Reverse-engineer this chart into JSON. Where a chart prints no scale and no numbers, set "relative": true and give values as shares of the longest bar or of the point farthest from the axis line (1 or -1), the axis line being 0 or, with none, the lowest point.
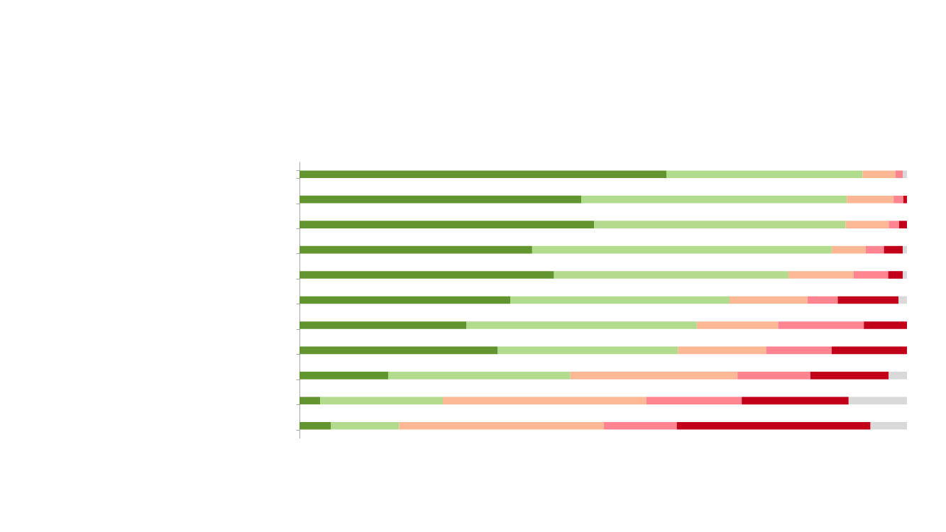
{
  "chart_data": {
    "type": "bar",
    "orientation": "horizontal",
    "stacked": true,
    "relative": true,
    "categories": [
      null,
      null,
      null,
      null,
      null,
      null,
      null,
      null,
      null,
      null,
      null
    ],
    "series": [
      {
        "color": "#62952f",
        "values": [
          0.604,
          0.464,
          0.485,
          0.383,
          0.419,
          0.347,
          0.275,
          0.326,
          0.146,
          0.034,
          0.052
        ]
      },
      {
        "color": "#b3db8e",
        "values": [
          0.323,
          0.437,
          0.414,
          0.493,
          0.386,
          0.361,
          0.379,
          0.297,
          0.3,
          0.202,
          0.112
        ]
      },
      {
        "color": "#fcb794",
        "values": [
          0.054,
          0.077,
          0.071,
          0.056,
          0.107,
          0.128,
          0.134,
          0.145,
          0.275,
          0.335,
          0.337
        ]
      },
      {
        "color": "#ff8490",
        "values": [
          0.012,
          0.016,
          0.017,
          0.03,
          0.057,
          0.05,
          0.141,
          0.108,
          0.12,
          0.157,
          0.12
        ]
      },
      {
        "color": "#c3001a",
        "values": [
          null,
          0.006,
          0.013,
          0.031,
          0.024,
          0.1,
          0.071,
          0.124,
          0.129,
          0.176,
          0.319
        ]
      },
      {
        "color": "#d9d9d9",
        "values": [
          0.007,
          null,
          null,
          0.007,
          0.007,
          0.014,
          null,
          null,
          0.03,
          0.096,
          0.06
        ]
      }
    ]
  }
}
